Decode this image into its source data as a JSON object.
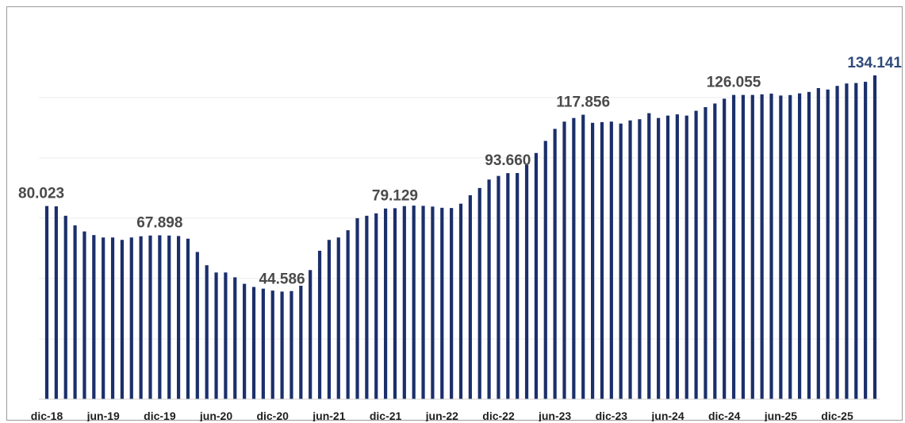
{
  "chart_data": {
    "type": "bar",
    "title": "",
    "xlabel": "",
    "ylabel": "",
    "ylim": [
      0,
      145000
    ],
    "grid": true,
    "legend": "none",
    "bar_color": "#1b2f6b",
    "highlight_label_color": "#2f4a7a",
    "label_color": "#4a4a4a",
    "x_tick_labels": [
      {
        "index": 0,
        "label": "dic-18"
      },
      {
        "index": 6,
        "label": "jun-19"
      },
      {
        "index": 12,
        "label": "dic-19"
      },
      {
        "index": 18,
        "label": "jun-20"
      },
      {
        "index": 24,
        "label": "dic-20"
      },
      {
        "index": 30,
        "label": "jun-21"
      },
      {
        "index": 36,
        "label": "dic-21"
      },
      {
        "index": 42,
        "label": "jun-22"
      },
      {
        "index": 48,
        "label": "dic-22"
      },
      {
        "index": 54,
        "label": "jun-23"
      },
      {
        "index": 60,
        "label": "dic-23"
      },
      {
        "index": 66,
        "label": "jun-24"
      },
      {
        "index": 72,
        "label": "dic-24"
      },
      {
        "index": 78,
        "label": "jun-25"
      },
      {
        "index": 84,
        "label": "dic-25"
      }
    ],
    "values": [
      80023,
      79900,
      76000,
      72000,
      69500,
      68000,
      67000,
      67000,
      66000,
      67000,
      67500,
      67800,
      67898,
      67800,
      67600,
      66500,
      61000,
      55500,
      52500,
      52500,
      50500,
      47800,
      46500,
      45800,
      45000,
      44586,
      44800,
      47000,
      53500,
      61500,
      66000,
      67000,
      70000,
      75000,
      76000,
      77000,
      79000,
      79129,
      80000,
      80200,
      80100,
      79800,
      79300,
      79200,
      81000,
      84500,
      87500,
      91000,
      92500,
      93660,
      93700,
      97000,
      102000,
      107000,
      112000,
      115000,
      116500,
      117856,
      114500,
      114800,
      115000,
      114200,
      115500,
      116000,
      118500,
      116500,
      117500,
      118000,
      117500,
      119500,
      121000,
      122500,
      124500,
      126055,
      126055,
      126055,
      126300,
      126600,
      125800,
      126000,
      126700,
      127300,
      128900,
      128300,
      129800,
      130800,
      131000,
      131500,
      134141
    ],
    "data_labels": [
      {
        "index": 0,
        "text": "80.023"
      },
      {
        "index": 12,
        "text": "67.898"
      },
      {
        "index": 25,
        "text": "44.586"
      },
      {
        "index": 37,
        "text": "79.129"
      },
      {
        "index": 49,
        "text": "93.660"
      },
      {
        "index": 57,
        "text": "117.856"
      },
      {
        "index": 73,
        "text": "126.055"
      },
      {
        "index": 88,
        "text": "134.141"
      }
    ]
  }
}
